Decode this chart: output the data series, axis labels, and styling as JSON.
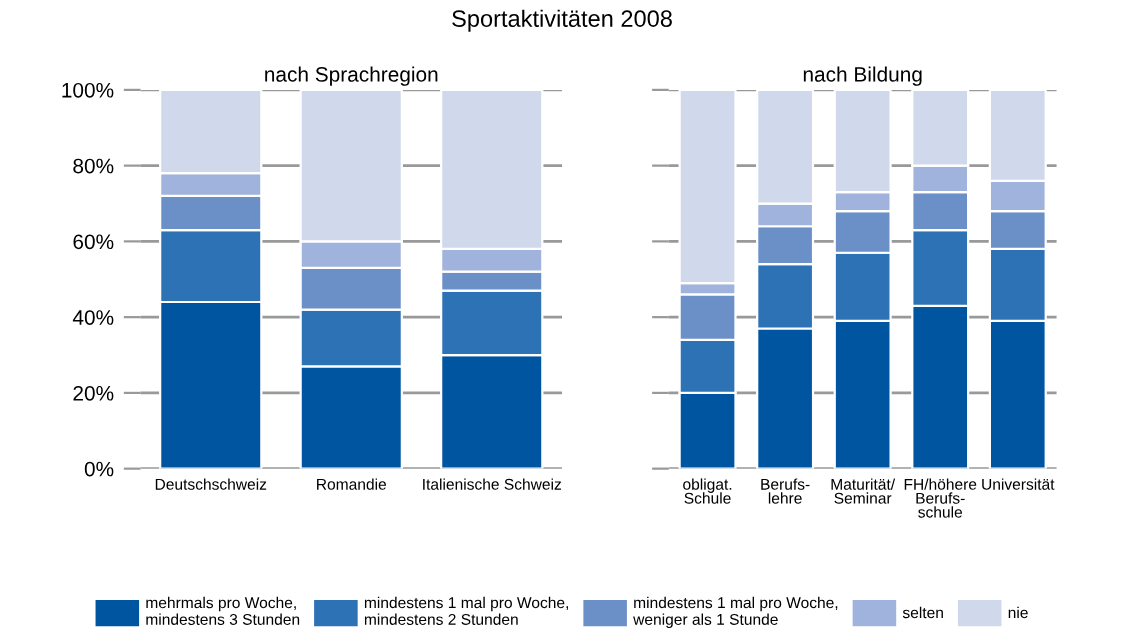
{
  "chart_data": [
    {
      "type": "bar",
      "title": "Sportaktivitäten 2008",
      "subtitle": "nach Sprachregion",
      "stacked": true,
      "categories": [
        "Deutschschweiz",
        "Romandie",
        "Italienische Schweiz"
      ],
      "series": [
        {
          "name": "mehrmals pro Woche,\nmindestens 3 Stunden",
          "color": "#0055a0",
          "values": [
            44,
            27,
            30
          ]
        },
        {
          "name": "mindestens 1 mal pro Woche,\nmindestens 2 Stunden",
          "color": "#2e72b6",
          "values": [
            19,
            15,
            17
          ]
        },
        {
          "name": "mindestens 1 mal pro Woche,\nweniger als 1 Stunde",
          "color": "#6b90c8",
          "values": [
            9,
            11,
            5
          ]
        },
        {
          "name": "selten",
          "color": "#a0b3dc",
          "values": [
            6,
            7,
            6
          ]
        },
        {
          "name": "nie",
          "color": "#d0d8ec",
          "values": [
            22,
            40,
            42
          ]
        }
      ],
      "ylim": [
        0,
        100
      ],
      "yticks": [
        {
          "value": 0,
          "label": "0%"
        },
        {
          "value": 20,
          "label": "20%"
        },
        {
          "value": 40,
          "label": "40%"
        },
        {
          "value": 60,
          "label": "60%"
        },
        {
          "value": 80,
          "label": "80%"
        },
        {
          "value": 100,
          "label": "100%"
        }
      ],
      "grid": "y",
      "legend": "bottom"
    },
    {
      "type": "bar",
      "subtitle": "nach Bildung",
      "stacked": true,
      "categories": [
        "obligat.\nSchule",
        "Berufs-\nlehre",
        "Maturität/\nSeminar",
        "FH/höhere\nBerufs-\nschule",
        "Universität"
      ],
      "series": [
        {
          "color": "#0055a0",
          "values": [
            20,
            37,
            39,
            43,
            39
          ]
        },
        {
          "color": "#2e72b6",
          "values": [
            14,
            17,
            18,
            20,
            19
          ]
        },
        {
          "color": "#6b90c8",
          "values": [
            12,
            10,
            11,
            10,
            10
          ]
        },
        {
          "color": "#a0b3dc",
          "values": [
            3,
            6,
            5,
            7,
            8
          ]
        },
        {
          "color": "#d0d8ec",
          "values": [
            51,
            30,
            27,
            20,
            24
          ]
        }
      ],
      "ylim": [
        0,
        100
      ],
      "yticks": [
        0,
        20,
        40,
        60,
        80,
        100
      ],
      "grid": "y",
      "tick_labels": "x"
    }
  ]
}
